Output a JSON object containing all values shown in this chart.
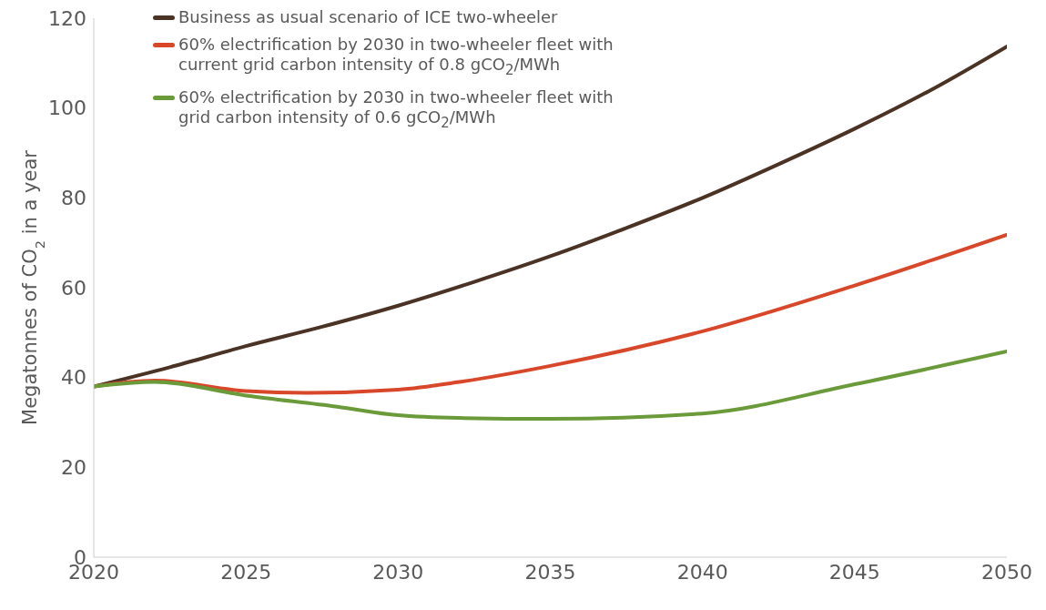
{
  "chart_data": {
    "type": "line",
    "ylabel": "Megatonnes of CO$_{2}$ in a year",
    "xlim": [
      2020,
      2050
    ],
    "xticks": [
      2020,
      2025,
      2030,
      2035,
      2040,
      2045,
      2050
    ],
    "ylim": [
      0,
      120
    ],
    "yticks": [
      0,
      20,
      40,
      60,
      80,
      100,
      120
    ],
    "legend": "top left",
    "marker": "none",
    "line_style": "solid",
    "series": [
      {
        "name": "Business as usual scenario of ICE two-wheeler",
        "color": "#4a3324",
        "x": [
          2020,
          2022.5,
          2025,
          2027.5,
          2030,
          2032.5,
          2035,
          2037.5,
          2040,
          2042.5,
          2045,
          2047.5,
          2050
        ],
        "values": [
          38,
          42.3,
          47,
          51.3,
          56,
          61.3,
          67,
          73.3,
          80,
          87.5,
          95.4,
          104,
          113.7
        ]
      },
      {
        "name": "60% electrification by 2030 in two-wheeler fleet with current grid carbon intensity of 0.8 gCO$_{2}$/MWh",
        "color": "#d9472b",
        "x": [
          2020,
          2022,
          2025,
          2027,
          2030,
          2032,
          2035,
          2040,
          2045,
          2050
        ],
        "values": [
          38,
          39.3,
          37,
          36.6,
          37.3,
          39,
          42.6,
          50.3,
          60.5,
          71.8
        ]
      },
      {
        "name": "60% electrification by 2030 in two-wheeler fleet with grid carbon intensity of 0.6 gCO$_{2}$/MWh",
        "color": "#6a9a3a",
        "x": [
          2020,
          2022,
          2025,
          2028,
          2030,
          2032,
          2035,
          2040,
          2045,
          2050
        ],
        "values": [
          38,
          39,
          36,
          33.5,
          31.6,
          31,
          30.8,
          32,
          38.5,
          45.8
        ]
      }
    ]
  }
}
